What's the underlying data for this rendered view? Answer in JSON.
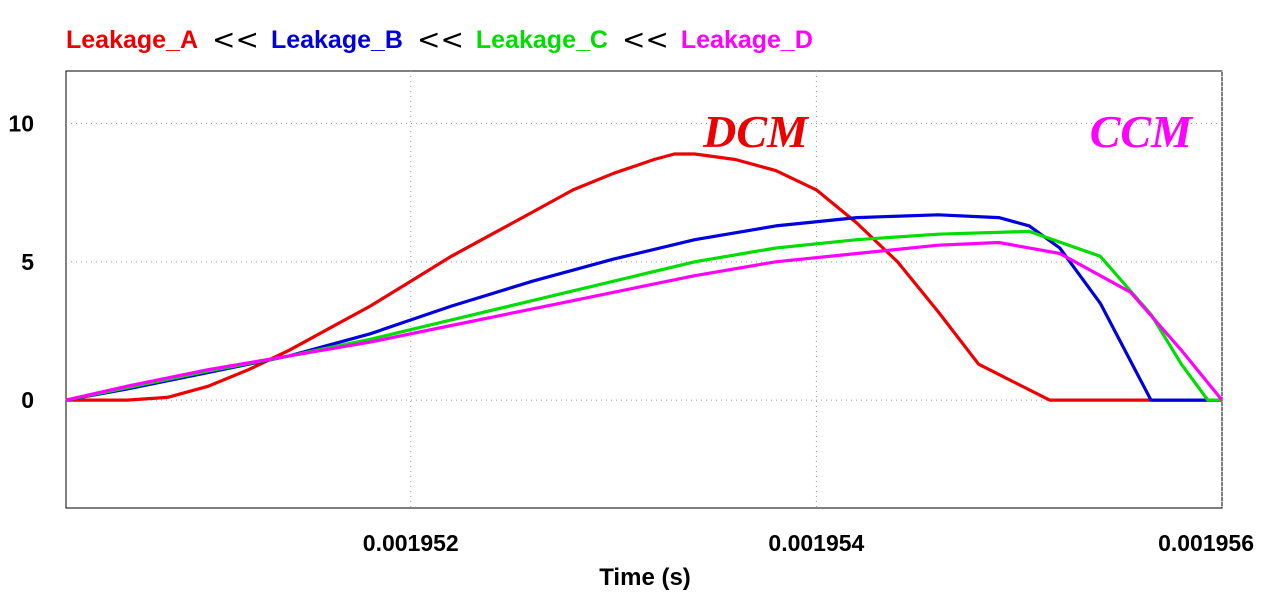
{
  "chart_data": {
    "type": "line",
    "title": "",
    "xlabel": "Time (s)",
    "ylabel": "",
    "xlim": [
      0.0019503,
      0.001956
    ],
    "ylim": [
      -3.9,
      11.9
    ],
    "x_ticks": [
      {
        "value": 0.001952,
        "label": "0.001952"
      },
      {
        "value": 0.001954,
        "label": "0.001954"
      },
      {
        "value": 0.001956,
        "label": "0.001956"
      }
    ],
    "y_ticks": [
      {
        "value": 10,
        "label": "10"
      },
      {
        "value": 5,
        "label": "5"
      },
      {
        "value": 0,
        "label": "0"
      }
    ],
    "grid": true,
    "legend_separator": "<<",
    "series": [
      {
        "name": "Leakage_A",
        "color": "#ee0000",
        "x": [
          0.0019503,
          0.0019506,
          0.0019508,
          0.001951,
          0.0019512,
          0.0019514,
          0.0019516,
          0.0019518,
          0.001952,
          0.0019522,
          0.0019524,
          0.0019526,
          0.0019528,
          0.001953,
          0.0019532,
          0.0019533,
          0.0019534,
          0.0019536,
          0.0019538,
          0.001954,
          0.0019542,
          0.0019544,
          0.0019546,
          0.0019548,
          0.00195515,
          0.0019556,
          0.001956
        ],
        "y": [
          0.0,
          0.0,
          0.1,
          0.5,
          1.1,
          1.8,
          2.6,
          3.4,
          4.3,
          5.2,
          6.0,
          6.8,
          7.6,
          8.2,
          8.7,
          8.9,
          8.9,
          8.7,
          8.3,
          7.6,
          6.4,
          5.0,
          3.2,
          1.3,
          0.0,
          0.0,
          0.0
        ]
      },
      {
        "name": "Leakage_B",
        "color": "#0000dd",
        "x": [
          0.0019503,
          0.0019506,
          0.001951,
          0.0019514,
          0.0019518,
          0.0019522,
          0.0019526,
          0.001953,
          0.0019534,
          0.0019538,
          0.0019542,
          0.0019546,
          0.0019549,
          0.00195505,
          0.0019552,
          0.0019554,
          0.00195565,
          0.0019558,
          0.001956
        ],
        "y": [
          0.0,
          0.4,
          1.0,
          1.6,
          2.4,
          3.4,
          4.3,
          5.1,
          5.8,
          6.3,
          6.6,
          6.7,
          6.6,
          6.3,
          5.5,
          3.5,
          0.0,
          0.0,
          0.0
        ]
      },
      {
        "name": "Leakage_C",
        "color": "#00dd00",
        "x": [
          0.0019503,
          0.0019506,
          0.001951,
          0.0019514,
          0.0019518,
          0.0019522,
          0.0019526,
          0.001953,
          0.0019534,
          0.0019538,
          0.0019542,
          0.0019546,
          0.00195505,
          0.0019554,
          0.00195565,
          0.0019558,
          0.00195593,
          0.001956
        ],
        "y": [
          0.0,
          0.45,
          1.05,
          1.6,
          2.2,
          2.9,
          3.6,
          4.3,
          5.0,
          5.5,
          5.8,
          6.0,
          6.1,
          5.2,
          3.1,
          1.3,
          0.0,
          0.0
        ]
      },
      {
        "name": "Leakage_D",
        "color": "#ff00ff",
        "x": [
          0.0019503,
          0.0019506,
          0.001951,
          0.0019514,
          0.0019518,
          0.0019522,
          0.0019526,
          0.001953,
          0.0019534,
          0.0019538,
          0.0019542,
          0.0019546,
          0.0019549,
          0.0019552,
          0.00195555,
          0.0019558,
          0.001956
        ],
        "y": [
          0.0,
          0.5,
          1.1,
          1.6,
          2.1,
          2.7,
          3.3,
          3.9,
          4.5,
          5.0,
          5.3,
          5.6,
          5.7,
          5.3,
          3.9,
          1.8,
          0.0
        ]
      }
    ],
    "annotations": [
      {
        "text": "DCM",
        "color": "#ee0000",
        "x": 0.0019537,
        "y": 9.8
      },
      {
        "text": "CCM",
        "color": "#ff00ff",
        "x": 0.0019556,
        "y": 9.8
      }
    ]
  }
}
